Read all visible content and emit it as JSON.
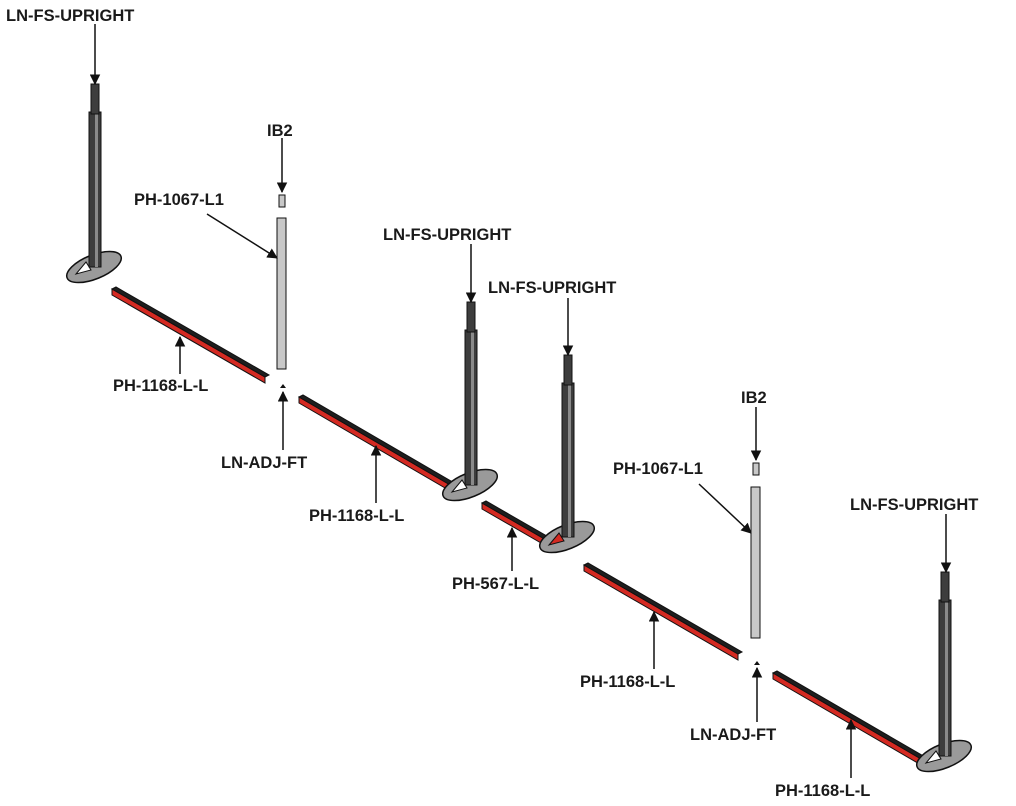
{
  "labels": {
    "upright_1": "LN-FS-UPRIGHT",
    "ib2_1": "IB2",
    "ph1067_1": "PH-1067-L1",
    "upright_2": "LN-FS-UPRIGHT",
    "upright_3": "LN-FS-UPRIGHT",
    "ph1168_1": "PH-1168-L-L",
    "adjft_1": "LN-ADJ-FT",
    "ph1168_2": "PH-1168-L-L",
    "ph567": "PH-567-L-L",
    "ib2_2": "IB2",
    "ph1067_2": "PH-1067-L1",
    "upright_4": "LN-FS-UPRIGHT",
    "ph1168_3": "PH-1168-L-L",
    "adjft_2": "LN-ADJ-FT",
    "ph1168_4": "PH-1168-L-L"
  },
  "colors": {
    "upright": "#3d3d3d",
    "upright_highlight": "#8a8a8a",
    "panel_upright": "#c8c8c8",
    "rail_red": "#d42a22",
    "rail_dark": "#1e1e1e",
    "base_plate": "#9a9a9a",
    "outline": "#111111",
    "arrow": "#111111"
  }
}
